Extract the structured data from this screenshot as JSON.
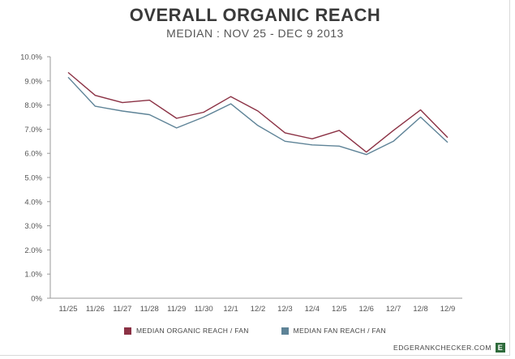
{
  "chart_data": {
    "type": "line",
    "title": "OVERALL ORGANIC REACH",
    "subtitle": "MEDIAN : NOV 25 - DEC 9 2013",
    "categories": [
      "11/25",
      "11/26",
      "11/27",
      "11/28",
      "11/29",
      "11/30",
      "12/1",
      "12/2",
      "12/3",
      "12/4",
      "12/5",
      "12/6",
      "12/7",
      "12/8",
      "12/9"
    ],
    "series": [
      {
        "name": "MEDIAN ORGANIC REACH / FAN",
        "color": "#8b3144",
        "values": [
          9.35,
          8.4,
          8.1,
          8.2,
          7.45,
          7.7,
          8.35,
          7.75,
          6.85,
          6.6,
          6.95,
          6.05,
          6.95,
          7.8,
          6.65
        ]
      },
      {
        "name": "MEDIAN FAN REACH / FAN",
        "color": "#5e8397",
        "values": [
          9.15,
          7.95,
          7.75,
          7.6,
          7.05,
          7.5,
          8.05,
          7.15,
          6.5,
          6.35,
          6.3,
          5.95,
          6.5,
          7.5,
          6.45
        ]
      }
    ],
    "ylim": [
      0,
      10
    ],
    "yticks": [
      "0%",
      "1.0%",
      "2.0%",
      "3.0%",
      "4.0%",
      "5.0%",
      "6.0%",
      "7.0%",
      "8.0%",
      "9.0%",
      "10.0%"
    ],
    "grid": false,
    "legend_position": "bottom"
  },
  "brand": {
    "text": "EDGERANKCHECKER.COM",
    "logo_letter": "E"
  }
}
